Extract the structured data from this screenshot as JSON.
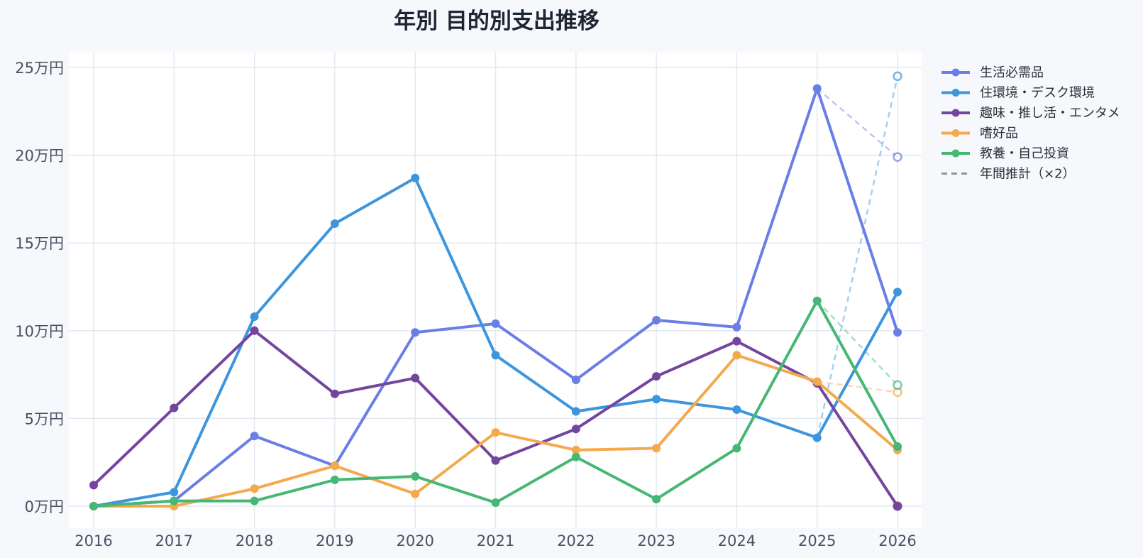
{
  "chart_data": {
    "type": "line",
    "title": "年別 目的別支出推移",
    "xlabel": "",
    "ylabel": "",
    "x": [
      2016,
      2017,
      2018,
      2019,
      2020,
      2021,
      2022,
      2023,
      2024,
      2025,
      2026
    ],
    "ylim": [
      0,
      260000
    ],
    "yticks": [
      0,
      50000,
      100000,
      150000,
      200000,
      250000
    ],
    "ytick_labels": [
      "0万円",
      "5万円",
      "10万円",
      "15万円",
      "20万円",
      "25万円"
    ],
    "grid": true,
    "legend_position": "top-right outside plot",
    "series": [
      {
        "name": "生活必需品",
        "color": "#6a7fe6",
        "values": [
          0,
          3000,
          40000,
          23000,
          99000,
          104000,
          72000,
          106000,
          102000,
          238000,
          99000
        ],
        "projection": 199000
      },
      {
        "name": "住環境・デスク環境",
        "color": "#3d96dd",
        "values": [
          0,
          8000,
          108000,
          161000,
          187000,
          86000,
          54000,
          61000,
          55000,
          39000,
          122000
        ],
        "projection": 245000
      },
      {
        "name": "趣味・推し活・エンタメ",
        "color": "#73459e",
        "values": [
          12000,
          56000,
          100000,
          64000,
          73000,
          26000,
          44000,
          74000,
          94000,
          70000,
          0
        ],
        "projection": 0
      },
      {
        "name": "嗜好品",
        "color": "#f4a94d",
        "values": [
          0,
          0,
          10000,
          23000,
          7000,
          42000,
          32000,
          33000,
          86000,
          71000,
          32000
        ],
        "projection": 65000
      },
      {
        "name": "教養・自己投資",
        "color": "#46b774",
        "values": [
          0,
          3000,
          3000,
          15000,
          17000,
          2000,
          28000,
          4000,
          33000,
          117000,
          34000
        ],
        "projection": 69000
      }
    ],
    "projection_legend": {
      "name": "年間推計（×2）",
      "color": "#8f949e"
    }
  }
}
